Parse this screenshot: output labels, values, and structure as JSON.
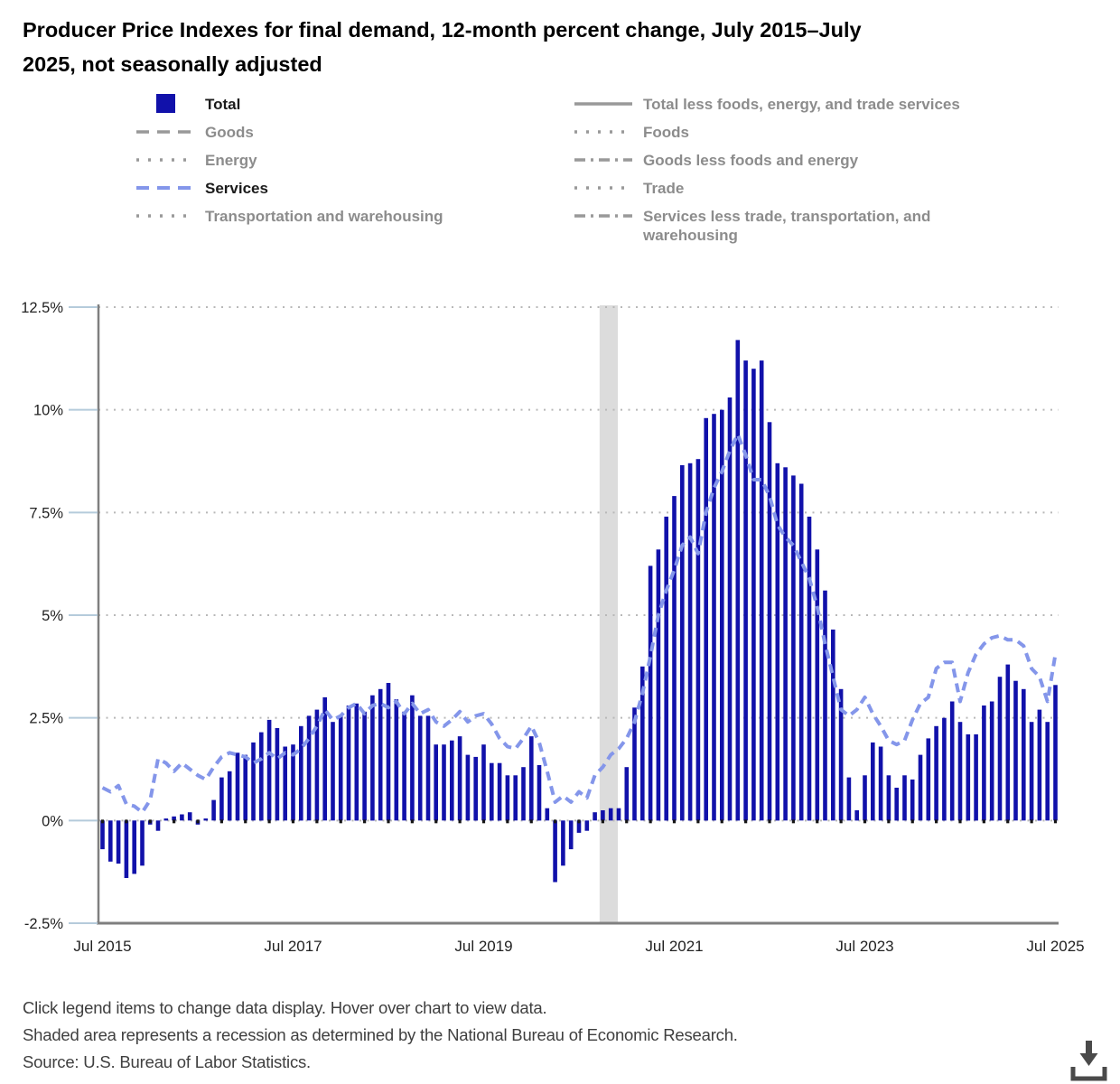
{
  "title": {
    "line1": "Producer Price Indexes for final demand, 12-month percent change, July 2015–July",
    "line2": "2025, not seasonally adjusted"
  },
  "legend": {
    "columns": [
      {
        "items": [
          {
            "label": "Total",
            "swatch": "square",
            "color": "#1111AA",
            "active": true
          },
          {
            "label": "Goods",
            "swatch": "dashed",
            "color": "#999999",
            "active": false
          },
          {
            "label": "Energy",
            "swatch": "dotted",
            "color": "#999999",
            "active": false
          },
          {
            "label": "Services",
            "swatch": "dashed",
            "color": "#8496EA",
            "active": true
          },
          {
            "label": "Transportation and warehousing",
            "swatch": "dotted",
            "color": "#999999",
            "active": false
          }
        ]
      },
      {
        "items": [
          {
            "label": "Total less foods, energy, and trade services",
            "swatch": "solid",
            "color": "#999999",
            "active": false
          },
          {
            "label": "Foods",
            "swatch": "dotted",
            "color": "#999999",
            "active": false
          },
          {
            "label": "Goods less foods and energy",
            "swatch": "dashdot",
            "color": "#999999",
            "active": false
          },
          {
            "label": "Trade",
            "swatch": "dotted",
            "color": "#999999",
            "active": false
          },
          {
            "label": "Services less trade, transportation, and warehousing",
            "swatch": "dashdot",
            "color": "#999999",
            "active": false
          }
        ]
      }
    ]
  },
  "chart_data": {
    "type": "bar",
    "title": "Producer Price Indexes for final demand, 12-month percent change, July 2015–July 2025, not seasonally adjusted",
    "frequency": "monthly",
    "x_start": "Jul 2015",
    "x_end": "Jul 2025",
    "n_points": 121,
    "ylim": [
      -2.5,
      12.5
    ],
    "grid": "horizontal-dotted",
    "y_ticks": [
      {
        "label": "12.5%",
        "v": 12.5
      },
      {
        "label": "10%",
        "v": 10
      },
      {
        "label": "7.5%",
        "v": 7.5
      },
      {
        "label": "5%",
        "v": 5
      },
      {
        "label": "2.5%",
        "v": 2.5
      },
      {
        "label": "0%",
        "v": 0
      },
      {
        "label": "-2.5%",
        "v": -2.5
      }
    ],
    "x_ticks": [
      {
        "label": "Jul 2015",
        "m": 0
      },
      {
        "label": "Jul 2017",
        "m": 24
      },
      {
        "label": "Jul 2019",
        "m": 48
      },
      {
        "label": "Jul 2021",
        "m": 72
      },
      {
        "label": "Jul 2023",
        "m": 96
      },
      {
        "label": "Jul 2025",
        "m": 120
      }
    ],
    "recession_band": {
      "start_month_index": 62.6,
      "end_month_index": 64.9,
      "color": "#DCDCDC"
    },
    "series": [
      {
        "name": "Total",
        "type": "bar",
        "color": "#1111AA",
        "values": [
          -0.7,
          -1.0,
          -1.05,
          -1.4,
          -1.3,
          -1.1,
          -0.1,
          -0.25,
          0.05,
          0.1,
          0.15,
          0.2,
          -0.1,
          0.05,
          0.5,
          1.05,
          1.2,
          1.65,
          1.6,
          1.9,
          2.15,
          2.45,
          2.25,
          1.8,
          1.85,
          2.3,
          2.55,
          2.7,
          3.0,
          2.4,
          2.55,
          2.8,
          2.85,
          2.65,
          3.05,
          3.2,
          3.35,
          2.95,
          2.65,
          3.05,
          2.55,
          2.55,
          1.85,
          1.85,
          1.95,
          2.05,
          1.6,
          1.55,
          1.85,
          1.4,
          1.4,
          1.1,
          1.1,
          1.3,
          2.05,
          1.35,
          0.3,
          -1.5,
          -1.1,
          -0.7,
          -0.3,
          -0.25,
          0.2,
          0.25,
          0.3,
          0.3,
          1.3,
          2.75,
          3.75,
          6.2,
          6.6,
          7.4,
          7.9,
          8.65,
          8.7,
          8.8,
          9.8,
          9.9,
          10.0,
          10.3,
          11.7,
          11.2,
          11.0,
          11.2,
          9.7,
          8.7,
          8.6,
          8.4,
          8.2,
          7.4,
          6.6,
          5.6,
          4.65,
          3.2,
          1.05,
          0.25,
          1.1,
          1.9,
          1.8,
          1.1,
          0.8,
          1.1,
          1.0,
          1.6,
          2.0,
          2.3,
          2.5,
          2.9,
          2.4,
          2.1,
          2.1,
          2.8,
          2.9,
          3.5,
          3.8,
          3.4,
          3.2,
          2.4,
          2.7,
          2.4,
          3.3
        ]
      },
      {
        "name": "Services",
        "type": "dashed-line",
        "color": "#8496EA",
        "values": [
          0.8,
          0.7,
          0.85,
          0.4,
          0.35,
          0.2,
          0.5,
          1.5,
          1.4,
          1.2,
          1.4,
          1.25,
          1.1,
          1.0,
          1.3,
          1.55,
          1.65,
          1.6,
          1.55,
          1.4,
          1.5,
          1.65,
          1.5,
          1.65,
          1.6,
          1.75,
          2.0,
          2.3,
          2.7,
          2.45,
          2.55,
          2.75,
          2.85,
          2.6,
          2.8,
          2.85,
          2.75,
          2.9,
          2.6,
          2.85,
          2.6,
          2.7,
          2.4,
          2.3,
          2.45,
          2.65,
          2.4,
          2.55,
          2.6,
          2.35,
          2.0,
          1.8,
          1.75,
          2.0,
          2.3,
          1.9,
          1.2,
          0.45,
          0.6,
          0.45,
          0.7,
          0.55,
          1.1,
          1.3,
          1.6,
          1.75,
          2.0,
          2.4,
          3.1,
          4.0,
          5.0,
          5.6,
          6.1,
          6.7,
          6.9,
          6.5,
          7.5,
          8.1,
          8.5,
          9.0,
          9.4,
          8.9,
          8.3,
          8.3,
          7.9,
          7.2,
          6.9,
          6.7,
          6.3,
          5.9,
          5.2,
          4.3,
          3.5,
          2.7,
          2.55,
          2.7,
          3.0,
          2.6,
          2.3,
          1.95,
          1.85,
          1.95,
          2.45,
          2.85,
          3.0,
          3.7,
          3.85,
          3.85,
          2.9,
          3.6,
          4.05,
          4.3,
          4.45,
          4.5,
          4.4,
          4.4,
          4.25,
          3.7,
          3.5,
          2.9,
          4.05
        ]
      }
    ]
  },
  "footer": {
    "line1": "Click legend items to change data display. Hover over chart to view data.",
    "line2": "Shaded area represents a recession as determined by the National Bureau of Economic Research.",
    "line3": "Source: U.S. Bureau of Labor Statistics."
  },
  "colors": {
    "bar": "#1111AA",
    "services_line": "#8496EA",
    "recession_band": "#DCDCDC",
    "gridline": "#B8B8B8",
    "axis": "#7F7F7F",
    "legend_inactive": "#8C8C8C",
    "legend_active": "#1B1B1B"
  }
}
